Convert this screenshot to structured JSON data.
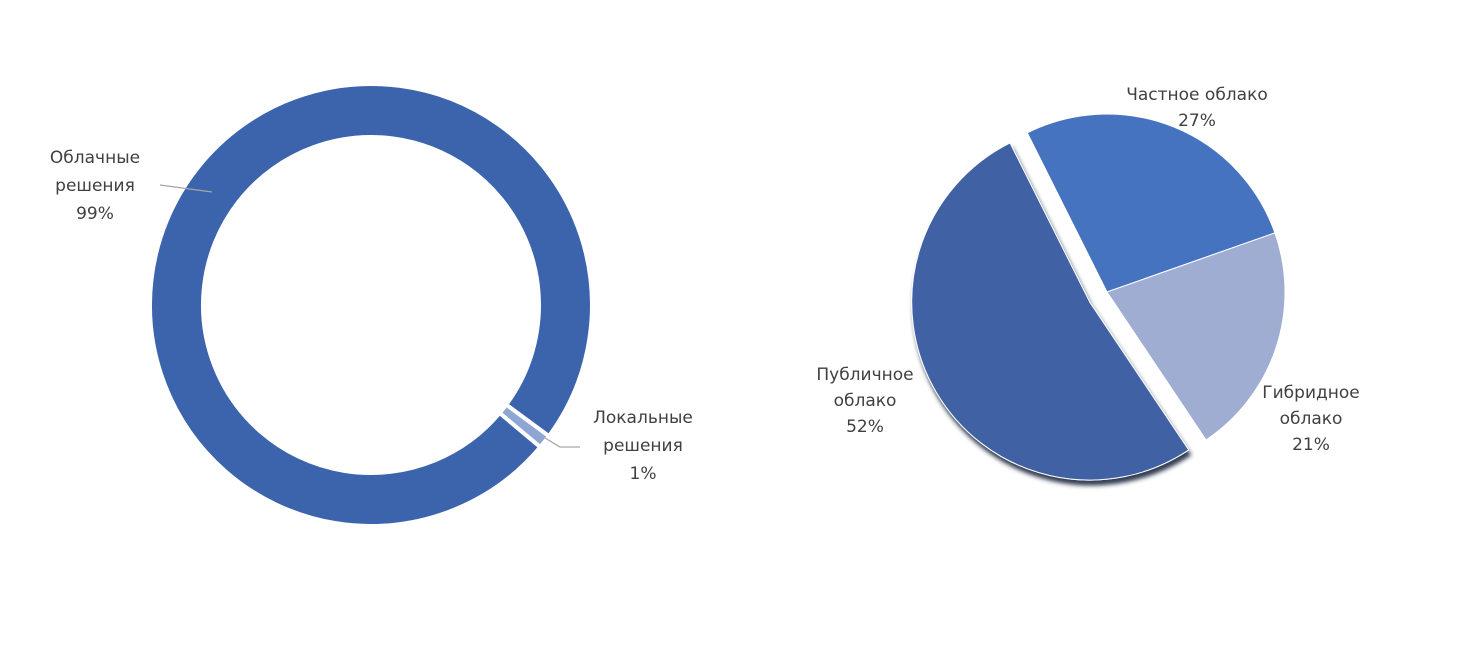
{
  "chart_data": [
    {
      "type": "donut",
      "categories": [
        "Облачные решения",
        "Локальные решения"
      ],
      "values": [
        99,
        1
      ],
      "value_labels": [
        "99%",
        "1%"
      ],
      "colors": [
        "#3c64ad",
        "#8fa5d4"
      ]
    },
    {
      "type": "pie",
      "categories": [
        "Частное облако",
        "Гибридное облако",
        "Публичное облако"
      ],
      "values": [
        27,
        21,
        52
      ],
      "value_labels": [
        "27%",
        "21%",
        "52%"
      ],
      "colors": [
        "#4673c0",
        "#9eadd1",
        "#3f62a5"
      ]
    }
  ]
}
